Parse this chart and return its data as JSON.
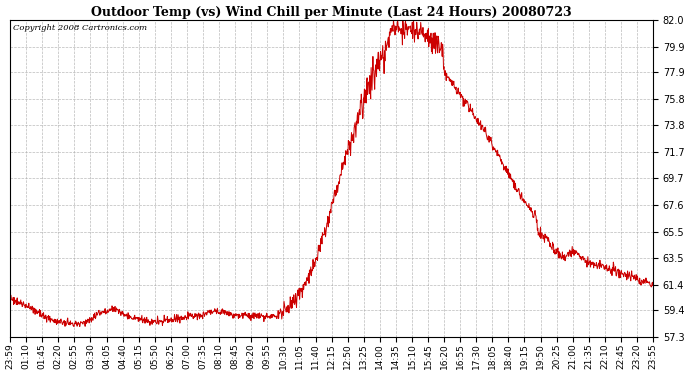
{
  "title": "Outdoor Temp (vs) Wind Chill per Minute (Last 24 Hours) 20080723",
  "copyright": "Copyright 2008 Cartronics.com",
  "line_color": "#cc0000",
  "background_color": "#ffffff",
  "grid_color": "#aaaaaa",
  "yticks": [
    57.3,
    59.4,
    61.4,
    63.5,
    65.5,
    67.6,
    69.7,
    71.7,
    73.8,
    75.8,
    77.9,
    79.9,
    82.0
  ],
  "ylim": [
    57.3,
    82.0
  ],
  "xtick_labels": [
    "23:59",
    "01:10",
    "01:45",
    "02:20",
    "02:55",
    "03:30",
    "04:05",
    "04:40",
    "05:15",
    "05:50",
    "06:25",
    "07:00",
    "07:35",
    "08:10",
    "08:45",
    "09:20",
    "09:55",
    "10:30",
    "11:05",
    "11:40",
    "12:15",
    "12:50",
    "13:25",
    "14:00",
    "14:35",
    "15:10",
    "15:45",
    "16:20",
    "16:55",
    "17:30",
    "18:05",
    "18:40",
    "19:15",
    "19:50",
    "20:25",
    "21:00",
    "21:35",
    "22:10",
    "22:45",
    "23:20",
    "23:55"
  ],
  "figsize": [
    6.9,
    3.75
  ],
  "dpi": 100
}
